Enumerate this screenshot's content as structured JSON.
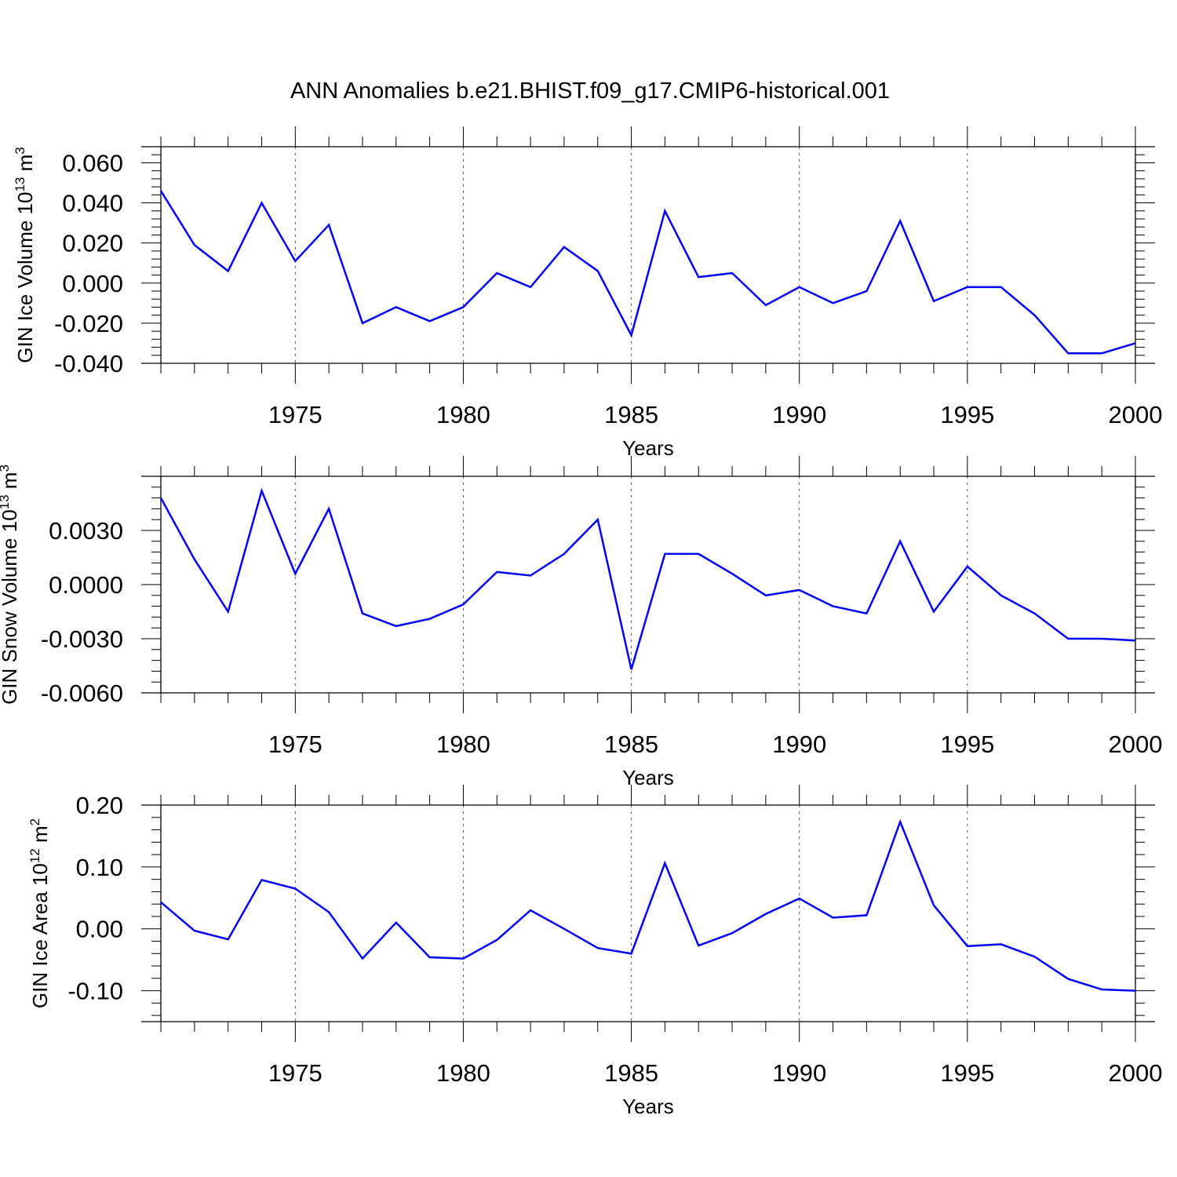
{
  "figure_title": "ANN Anomalies b.e21.BHIST.f09_g17.CMIP6-historical.001",
  "chart_data": [
    {
      "type": "line",
      "title": "ANN Anomalies b.e21.BHIST.f09_g17.CMIP6-historical.001",
      "xlabel": "Years",
      "ylabel": "GIN Ice Volume 10",
      "ylabel_exp": "13",
      "ylabel_unit": "m",
      "ylabel_unit_exp": "3",
      "xlim": [
        1971,
        2000
      ],
      "ylim": [
        -0.04,
        0.068
      ],
      "yticks": [
        -0.04,
        -0.02,
        0.0,
        0.02,
        0.04,
        0.06
      ],
      "ytick_labels": [
        "-0.040",
        "-0.020",
        "0.000",
        "0.020",
        "0.040",
        "0.060"
      ],
      "xticks": [
        1975,
        1980,
        1985,
        1990,
        1995,
        2000
      ],
      "xtick_labels": [
        "1975",
        "1980",
        "1985",
        "1990",
        "1995",
        "2000"
      ],
      "grid": "vertical dashed at major x ticks",
      "series": [
        {
          "name": "GIN Ice Volume",
          "color": "#0000ff",
          "x": [
            1971,
            1972,
            1973,
            1974,
            1975,
            1976,
            1977,
            1978,
            1979,
            1980,
            1981,
            1982,
            1983,
            1984,
            1985,
            1986,
            1987,
            1988,
            1989,
            1990,
            1991,
            1992,
            1993,
            1994,
            1995,
            1996,
            1997,
            1998,
            1999,
            2000
          ],
          "values": [
            0.046,
            0.019,
            0.006,
            0.04,
            0.011,
            0.029,
            -0.02,
            -0.012,
            -0.019,
            -0.012,
            0.005,
            -0.002,
            0.018,
            0.006,
            -0.026,
            0.036,
            0.003,
            0.005,
            -0.011,
            -0.002,
            -0.01,
            -0.004,
            0.031,
            -0.009,
            -0.002,
            -0.002,
            -0.016,
            -0.035,
            -0.035,
            -0.03
          ]
        }
      ]
    },
    {
      "type": "line",
      "xlabel": "Years",
      "ylabel": "GIN Snow Volume 10",
      "ylabel_exp": "13",
      "ylabel_unit": "m",
      "ylabel_unit_exp": "3",
      "xlim": [
        1971,
        2000
      ],
      "ylim": [
        -0.006,
        0.006
      ],
      "yticks": [
        -0.006,
        -0.003,
        0.0,
        0.003
      ],
      "ytick_labels": [
        "-0.0060",
        "-0.0030",
        "0.0000",
        "0.0030"
      ],
      "xticks": [
        1975,
        1980,
        1985,
        1990,
        1995,
        2000
      ],
      "xtick_labels": [
        "1975",
        "1980",
        "1985",
        "1990",
        "1995",
        "2000"
      ],
      "grid": "vertical dashed at major x ticks",
      "series": [
        {
          "name": "GIN Snow Volume",
          "color": "#0000ff",
          "x": [
            1971,
            1972,
            1973,
            1974,
            1975,
            1976,
            1977,
            1978,
            1979,
            1980,
            1981,
            1982,
            1983,
            1984,
            1985,
            1986,
            1987,
            1988,
            1989,
            1990,
            1991,
            1992,
            1993,
            1994,
            1995,
            1996,
            1997,
            1998,
            1999,
            2000
          ],
          "values": [
            0.0048,
            0.0014,
            -0.0015,
            0.0052,
            0.0006,
            0.0042,
            -0.0016,
            -0.0023,
            -0.0019,
            -0.0011,
            0.0007,
            0.0005,
            0.0017,
            0.0036,
            -0.0047,
            0.0017,
            0.0017,
            0.0006,
            -0.0006,
            -0.0003,
            -0.0012,
            -0.0016,
            0.0024,
            -0.0015,
            0.001,
            -0.0006,
            -0.0016,
            -0.003,
            -0.003,
            -0.0031
          ]
        }
      ]
    },
    {
      "type": "line",
      "xlabel": "Years",
      "ylabel": "GIN Ice Area 10",
      "ylabel_exp": "12",
      "ylabel_unit": "m",
      "ylabel_unit_exp": "2",
      "xlim": [
        1971,
        2000
      ],
      "ylim": [
        -0.15,
        0.2
      ],
      "yticks": [
        -0.1,
        0.0,
        0.1,
        0.2
      ],
      "ytick_labels": [
        "-0.10",
        "0.00",
        "0.10",
        "0.20"
      ],
      "xticks": [
        1975,
        1980,
        1985,
        1990,
        1995,
        2000
      ],
      "xtick_labels": [
        "1975",
        "1980",
        "1985",
        "1990",
        "1995",
        "2000"
      ],
      "grid": "vertical dashed at major x ticks",
      "series": [
        {
          "name": "GIN Ice Area",
          "color": "#0000ff",
          "x": [
            1971,
            1972,
            1973,
            1974,
            1975,
            1976,
            1977,
            1978,
            1979,
            1980,
            1981,
            1982,
            1983,
            1984,
            1985,
            1986,
            1987,
            1988,
            1989,
            1990,
            1991,
            1992,
            1993,
            1994,
            1995,
            1996,
            1997,
            1998,
            1999,
            2000
          ],
          "values": [
            0.043,
            -0.003,
            -0.017,
            0.079,
            0.065,
            0.027,
            -0.048,
            0.01,
            -0.046,
            -0.048,
            -0.018,
            0.03,
            0.0,
            -0.031,
            -0.04,
            0.106,
            -0.027,
            -0.007,
            0.024,
            0.049,
            0.018,
            0.022,
            0.173,
            0.038,
            -0.028,
            -0.025,
            -0.045,
            -0.081,
            -0.098,
            -0.1
          ]
        }
      ]
    }
  ]
}
